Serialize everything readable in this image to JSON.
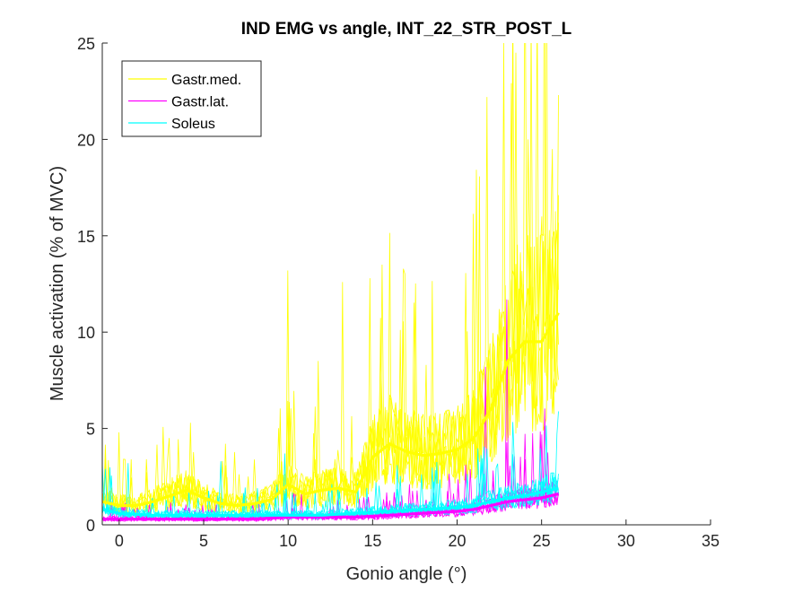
{
  "chart_data": {
    "type": "line",
    "title": "IND EMG vs angle, INT_22_STR_POST_L",
    "xlabel": "Gonio angle (°)",
    "ylabel": "Muscle activation (% of MVC)",
    "xlim": [
      -1,
      35
    ],
    "ylim": [
      0,
      25
    ],
    "xticks": [
      0,
      5,
      10,
      15,
      20,
      25,
      30,
      35
    ],
    "yticks": [
      0,
      5,
      10,
      15,
      20,
      25
    ],
    "xtick_labels": [
      "0",
      "5",
      "10",
      "15",
      "20",
      "25",
      "30",
      "35"
    ],
    "ytick_labels": [
      "0",
      "5",
      "10",
      "15",
      "20",
      "25"
    ],
    "grid": false,
    "legend_position": "top-left",
    "series": [
      {
        "name": "Gastr.med.",
        "color": "#FFFF00",
        "mean": {
          "x": [
            -1,
            0,
            1,
            2,
            3,
            4,
            5,
            6,
            7,
            8,
            9,
            10,
            11,
            12,
            13,
            14,
            15,
            16,
            17,
            18,
            19,
            20,
            21,
            22,
            23,
            24,
            25,
            26
          ],
          "y": [
            1.2,
            1.0,
            1.0,
            1.2,
            1.5,
            1.8,
            1.4,
            1.1,
            1.0,
            1.1,
            1.3,
            2.1,
            1.6,
            1.8,
            1.9,
            1.7,
            3.5,
            4.2,
            3.8,
            3.6,
            3.7,
            3.9,
            4.5,
            6.0,
            8.5,
            9.5,
            9.5,
            11.0
          ]
        },
        "peaks": {
          "x": [
            0,
            4.2,
            10,
            11.8,
            13.2,
            14.8,
            15.6,
            18.2,
            21.8,
            22.8,
            23.5,
            24.2,
            25.0,
            25.6,
            26.0
          ],
          "y": [
            4.8,
            5.3,
            13.2,
            8.5,
            12.6,
            12.8,
            13.5,
            8.3,
            22.2,
            25.0,
            24.5,
            20.0,
            16.0,
            19.5,
            22.3
          ]
        }
      },
      {
        "name": "Gastr.lat.",
        "color": "#FF00FF",
        "mean": {
          "x": [
            -1,
            0,
            2,
            4,
            6,
            8,
            10,
            12,
            14,
            16,
            18,
            20,
            21,
            22,
            23,
            24,
            25,
            26
          ],
          "y": [
            0.3,
            0.3,
            0.3,
            0.3,
            0.3,
            0.3,
            0.4,
            0.4,
            0.4,
            0.5,
            0.6,
            0.7,
            0.8,
            1.0,
            1.2,
            1.3,
            1.4,
            1.6
          ]
        },
        "peaks": {
          "x": [
            21.7,
            22.9
          ],
          "y": [
            8.2,
            11.7
          ]
        }
      },
      {
        "name": "Soleus",
        "color": "#00FFFF",
        "mean": {
          "x": [
            -1,
            0,
            2,
            4,
            6,
            8,
            10,
            12,
            14,
            16,
            18,
            20,
            21,
            22,
            23,
            24,
            25,
            26
          ],
          "y": [
            0.8,
            0.6,
            0.5,
            0.5,
            0.5,
            0.5,
            0.5,
            0.5,
            0.6,
            0.7,
            0.8,
            0.9,
            1.0,
            1.2,
            1.4,
            1.5,
            1.7,
            1.9
          ]
        },
        "peaks": {
          "x": [
            -0.8,
            0.5,
            6.0,
            9.8,
            16.5,
            25.9
          ],
          "y": [
            2.9,
            3.2,
            3.3,
            3.7,
            3.1,
            4.7
          ]
        }
      }
    ]
  }
}
